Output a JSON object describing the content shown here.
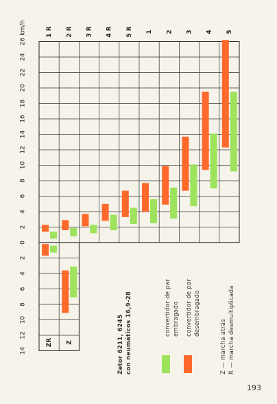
{
  "chart_data": {
    "type": "range-bar",
    "title": "Zetor 6211, 6245",
    "subtitle": "con neumáticos 16,9-28",
    "unit": "km/h",
    "categories": [
      "1 R",
      "2 R",
      "3 R",
      "4 R",
      "5 R",
      "1",
      "2",
      "3",
      "4",
      "5"
    ],
    "reverse_categories": [
      "ZR",
      "Z"
    ],
    "series": [
      {
        "name": "convertidor de par embragado",
        "color": "#9de35c",
        "values": [
          [
            0.5,
            1.4
          ],
          [
            0.8,
            1.9
          ],
          [
            1.2,
            2.3
          ],
          [
            1.6,
            3.6
          ],
          [
            2.4,
            4.5
          ],
          [
            2.5,
            5.6
          ],
          [
            3.1,
            7.1
          ],
          [
            4.7,
            10.1
          ],
          [
            7.0,
            14.1
          ],
          [
            9.2,
            19.5
          ]
        ],
        "reverse_values": [
          [
            -1.3,
            -0.4
          ],
          [
            -7.1,
            -3.1
          ]
        ]
      },
      {
        "name": "convertidor de par desembragado",
        "color": "#ff6a2c",
        "values": [
          [
            1.4,
            2.3
          ],
          [
            1.6,
            2.9
          ],
          [
            2.1,
            3.7
          ],
          [
            2.8,
            5.0
          ],
          [
            3.3,
            6.7
          ],
          [
            4.0,
            7.7
          ],
          [
            4.9,
            9.9
          ],
          [
            6.7,
            13.7
          ],
          [
            9.4,
            19.5
          ],
          [
            12.3,
            26.2
          ]
        ],
        "reverse_values": [
          [
            -1.7,
            -0.2
          ],
          [
            -9.1,
            -3.6
          ]
        ]
      }
    ],
    "ylim": [
      -14,
      26
    ],
    "yticks": [
      {
        "value": -14,
        "label": "14"
      },
      {
        "value": -12,
        "label": "12"
      },
      {
        "value": -10,
        "label": "10"
      },
      {
        "value": -8,
        "label": "8"
      },
      {
        "value": -6,
        "label": "6"
      },
      {
        "value": -4,
        "label": "4"
      },
      {
        "value": -2,
        "label": "2"
      },
      0,
      2,
      4,
      6,
      8,
      10,
      12,
      14,
      16,
      18,
      20,
      22,
      24,
      26
    ],
    "grid": true,
    "notes": [
      "Z — marcha atrás",
      "R — marcha desmultiplicada"
    ],
    "page_number": "193"
  }
}
